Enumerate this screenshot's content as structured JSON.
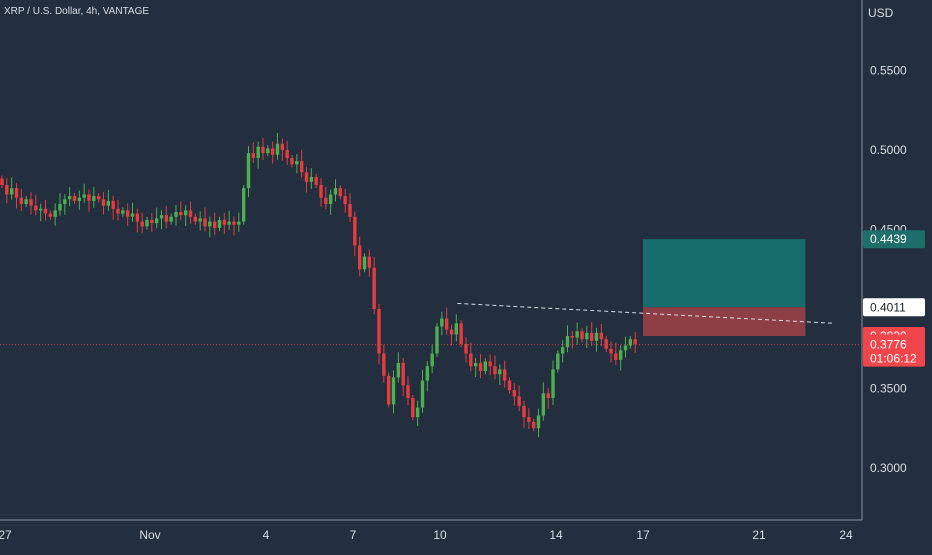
{
  "header": {
    "symbol_line": "XRP / U.S. Dollar, 4h, VANTAGE"
  },
  "colors": {
    "background": "#232f3f",
    "up": "#4caf50",
    "down": "#e83b3f",
    "axis_text": "#d9dde3",
    "target_zone": "#176d6b",
    "stop_zone": "#8e3f46",
    "target_label_bg": "#1e6e6c",
    "entry_label_bg": "#ffffff",
    "current_label_bg": "#f0464b",
    "trendline": "#d9dde3"
  },
  "chart_data": {
    "type": "candlestick",
    "currency": "USD",
    "ylim": [
      0.27,
      0.57
    ],
    "y_ticks": [
      "0.5500",
      "0.5000",
      "0.4500",
      "0.3500",
      "0.3000"
    ],
    "x_ticks": [
      "27",
      "Nov",
      "4",
      "7",
      "10",
      "14",
      "17",
      "21",
      "24"
    ],
    "x_tick_days": [
      -5,
      0,
      4,
      7,
      10,
      14,
      17,
      21,
      24
    ],
    "candle_closes": [
      0.478,
      0.472,
      0.476,
      0.47,
      0.466,
      0.469,
      0.465,
      0.462,
      0.463,
      0.46,
      0.458,
      0.462,
      0.466,
      0.469,
      0.471,
      0.468,
      0.47,
      0.472,
      0.468,
      0.471,
      0.469,
      0.465,
      0.468,
      0.463,
      0.46,
      0.462,
      0.458,
      0.46,
      0.455,
      0.452,
      0.456,
      0.454,
      0.457,
      0.459,
      0.455,
      0.458,
      0.461,
      0.459,
      0.462,
      0.458,
      0.455,
      0.457,
      0.452,
      0.455,
      0.451,
      0.456,
      0.453,
      0.455,
      0.453,
      0.455,
      0.476,
      0.498,
      0.495,
      0.502,
      0.498,
      0.501,
      0.497,
      0.504,
      0.5,
      0.495,
      0.491,
      0.493,
      0.486,
      0.48,
      0.483,
      0.478,
      0.47,
      0.466,
      0.472,
      0.476,
      0.471,
      0.466,
      0.458,
      0.44,
      0.425,
      0.433,
      0.426,
      0.4,
      0.372,
      0.358,
      0.34,
      0.357,
      0.366,
      0.352,
      0.344,
      0.332,
      0.338,
      0.355,
      0.364,
      0.372,
      0.389,
      0.394,
      0.387,
      0.384,
      0.391,
      0.378,
      0.372,
      0.364,
      0.366,
      0.361,
      0.367,
      0.364,
      0.359,
      0.362,
      0.355,
      0.349,
      0.345,
      0.339,
      0.332,
      0.329,
      0.325,
      0.333,
      0.347,
      0.344,
      0.362,
      0.372,
      0.376,
      0.383,
      0.382,
      0.386,
      0.381,
      0.385,
      0.38,
      0.385,
      0.381,
      0.375,
      0.372,
      0.368,
      0.374,
      0.377,
      0.381,
      0.378
    ],
    "trendline": {
      "start": [
        10.6,
        0.4035
      ],
      "end": [
        23.6,
        0.391
      ]
    },
    "position": {
      "target": 0.4439,
      "entry": 0.4011,
      "stop": 0.383,
      "x_range_days": [
        17.0,
        22.6
      ]
    },
    "current_price": "0.3776",
    "current_line_value": 0.3776,
    "countdown": "01:06:12",
    "labels": {
      "target": "0.4439",
      "entry": "0.4011",
      "stop": "0.3830"
    }
  }
}
